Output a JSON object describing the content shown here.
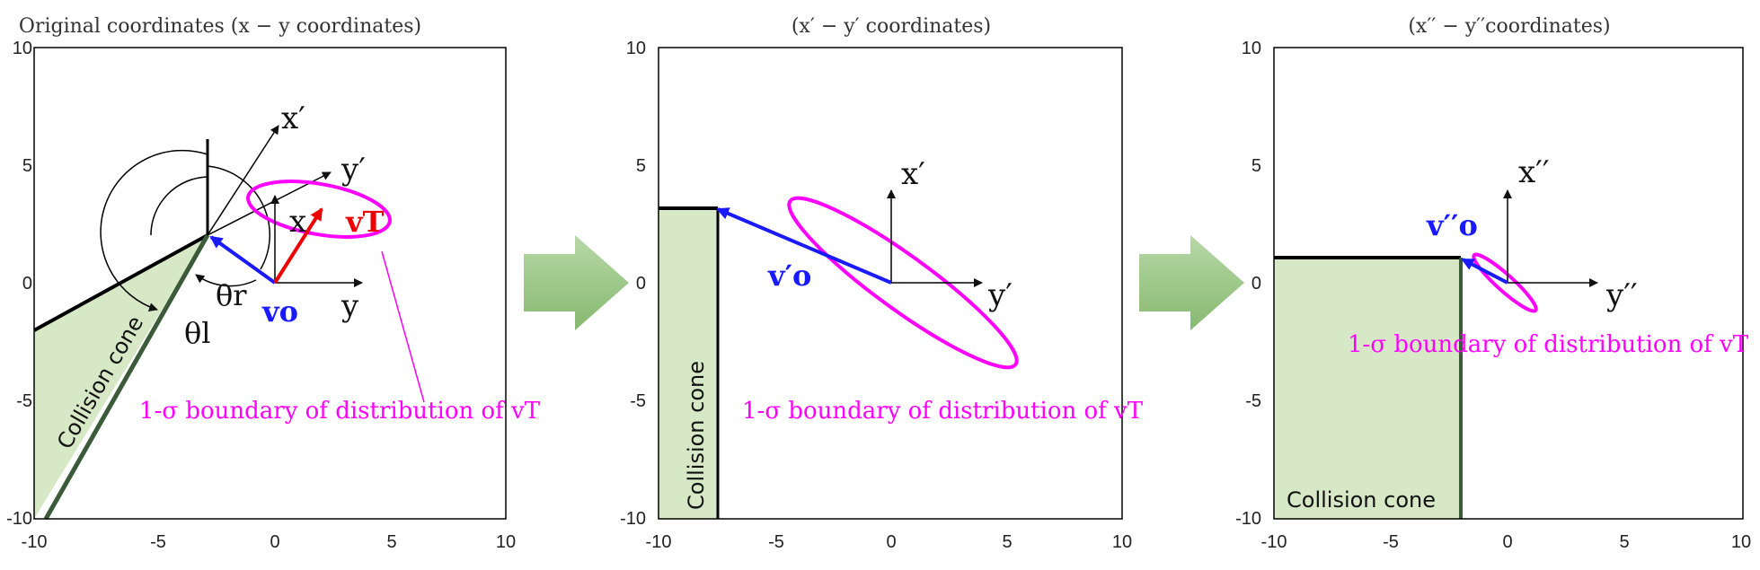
{
  "panels": [
    {
      "title": "Original coordinates (x − y coordinates)",
      "xticks": [
        "-10",
        "-5",
        "0",
        "5",
        "10"
      ],
      "yticks": [
        "10",
        "5",
        "0",
        "-5",
        "-10"
      ],
      "axes_labels": {
        "x": "x",
        "y": "y",
        "xp": "x′",
        "yp": "y′"
      },
      "angles": {
        "theta_r": "θr",
        "theta_l": "θl"
      },
      "vectors": {
        "vo": "vo",
        "vT": "vT"
      },
      "cone_label": "Collision cone",
      "boundary_label": "1-σ boundary of distribution of vT"
    },
    {
      "title": "(x′ − y′ coordinates)",
      "xticks": [
        "-10",
        "-5",
        "0",
        "5",
        "10"
      ],
      "yticks": [
        "10",
        "5",
        "0",
        "-5",
        "-10"
      ],
      "axes_labels": {
        "x": "x′",
        "y": "y′"
      },
      "vectors": {
        "vo": "v′o"
      },
      "cone_label": "Collision cone",
      "boundary_label": "1-σ boundary of distribution of vT"
    },
    {
      "title": "(x′′ − y′′coordinates)",
      "xticks": [
        "-10",
        "-5",
        "0",
        "5",
        "10"
      ],
      "yticks": [
        "10",
        "5",
        "0",
        "-5",
        "-10"
      ],
      "axes_labels": {
        "x": "x′′",
        "y": "y′′"
      },
      "vectors": {
        "vo": "v′′o"
      },
      "cone_label": "Collision cone",
      "boundary_label": "1-σ boundary of distribution of vT"
    }
  ],
  "colors": {
    "cone_fill": "#d6e8c6",
    "ellipse": "#ff00ff",
    "vo": "#1a1aff",
    "vT": "#ee0000",
    "arrow": "#9cc686"
  }
}
